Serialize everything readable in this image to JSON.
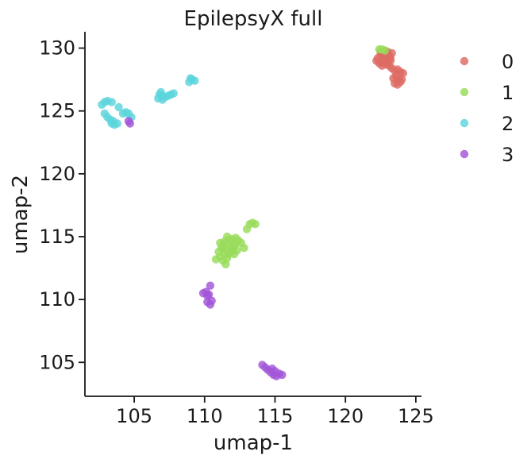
{
  "chart_data": {
    "type": "scatter",
    "title": "EpilepsyX full",
    "xlabel": "umap-1",
    "ylabel": "umap-2",
    "xlim": [
      101.5,
      125.4
    ],
    "ylim": [
      102.3,
      131.3
    ],
    "xticks": [
      105,
      110,
      115,
      120,
      125
    ],
    "yticks": [
      105,
      110,
      115,
      120,
      125,
      130
    ],
    "grid": false,
    "legend_position": "right",
    "series": [
      {
        "name": "0",
        "color": "#dd6b64",
        "points": [
          [
            122.3,
            129.2
          ],
          [
            122.5,
            129.5
          ],
          [
            122.7,
            129.3
          ],
          [
            122.9,
            129.6
          ],
          [
            123.1,
            129.4
          ],
          [
            122.4,
            128.8
          ],
          [
            122.6,
            128.9
          ],
          [
            122.8,
            129.0
          ],
          [
            123.0,
            128.9
          ],
          [
            123.2,
            129.0
          ],
          [
            122.5,
            129.7
          ],
          [
            122.8,
            129.8
          ],
          [
            123.0,
            129.7
          ],
          [
            123.3,
            129.6
          ],
          [
            122.2,
            129.0
          ],
          [
            122.6,
            128.6
          ],
          [
            122.9,
            128.7
          ],
          [
            123.1,
            128.6
          ],
          [
            123.3,
            128.4
          ],
          [
            123.5,
            128.2
          ],
          [
            123.7,
            128.3
          ],
          [
            123.9,
            128.1
          ],
          [
            124.1,
            128.0
          ],
          [
            123.6,
            127.8
          ],
          [
            123.8,
            127.6
          ],
          [
            124.0,
            127.5
          ],
          [
            123.9,
            127.3
          ],
          [
            123.7,
            127.1
          ],
          [
            123.5,
            127.2
          ],
          [
            123.4,
            127.6
          ],
          [
            122.7,
            129.4
          ],
          [
            123.2,
            129.2
          ]
        ]
      },
      {
        "name": "1",
        "color": "#99dc5a",
        "points": [
          [
            122.4,
            129.9
          ],
          [
            122.6,
            129.9
          ],
          [
            122.8,
            129.8
          ],
          [
            110.8,
            113.2
          ],
          [
            111.1,
            113.4
          ],
          [
            111.3,
            113.1
          ],
          [
            111.5,
            112.8
          ],
          [
            111.6,
            113.3
          ],
          [
            111.4,
            113.7
          ],
          [
            111.7,
            113.6
          ],
          [
            111.9,
            113.8
          ],
          [
            112.1,
            113.6
          ],
          [
            112.3,
            113.9
          ],
          [
            111.2,
            114.1
          ],
          [
            111.5,
            114.0
          ],
          [
            111.8,
            114.2
          ],
          [
            112.0,
            114.3
          ],
          [
            112.2,
            114.4
          ],
          [
            111.1,
            114.5
          ],
          [
            111.4,
            114.6
          ],
          [
            111.7,
            114.7
          ],
          [
            111.9,
            114.8
          ],
          [
            112.2,
            114.9
          ],
          [
            111.6,
            115.0
          ],
          [
            112.4,
            114.7
          ],
          [
            112.6,
            114.5
          ],
          [
            112.8,
            114.1
          ],
          [
            111.3,
            114.3
          ],
          [
            112.0,
            114.0
          ],
          [
            111.0,
            113.8
          ],
          [
            113.0,
            115.6
          ],
          [
            113.2,
            116.0
          ],
          [
            113.4,
            116.1
          ],
          [
            113.6,
            116.0
          ]
        ]
      },
      {
        "name": "2",
        "color": "#5cd4dc",
        "points": [
          [
            102.7,
            125.5
          ],
          [
            102.9,
            125.7
          ],
          [
            103.1,
            125.8
          ],
          [
            103.4,
            125.7
          ],
          [
            102.9,
            124.8
          ],
          [
            103.1,
            124.5
          ],
          [
            103.3,
            124.3
          ],
          [
            103.5,
            124.2
          ],
          [
            103.6,
            123.9
          ],
          [
            103.4,
            124.0
          ],
          [
            103.8,
            124.0
          ],
          [
            103.9,
            125.3
          ],
          [
            104.2,
            124.8
          ],
          [
            104.4,
            124.9
          ],
          [
            104.6,
            124.8
          ],
          [
            104.8,
            124.5
          ],
          [
            106.7,
            126.0
          ],
          [
            106.8,
            126.3
          ],
          [
            107.0,
            126.2
          ],
          [
            107.2,
            126.1
          ],
          [
            107.0,
            125.9
          ],
          [
            107.4,
            126.2
          ],
          [
            107.6,
            126.3
          ],
          [
            107.8,
            126.4
          ],
          [
            106.9,
            126.5
          ],
          [
            108.9,
            127.3
          ],
          [
            109.1,
            127.5
          ],
          [
            109.3,
            127.4
          ],
          [
            109.0,
            127.6
          ]
        ]
      },
      {
        "name": "3",
        "color": "#a256d8",
        "points": [
          [
            104.6,
            124.2
          ],
          [
            104.7,
            124.0
          ],
          [
            109.9,
            110.5
          ],
          [
            110.1,
            110.6
          ],
          [
            110.3,
            110.4
          ],
          [
            110.4,
            111.1
          ],
          [
            110.2,
            110.3
          ],
          [
            110.2,
            109.8
          ],
          [
            110.4,
            109.6
          ],
          [
            110.5,
            109.9
          ],
          [
            114.1,
            104.8
          ],
          [
            114.3,
            104.6
          ],
          [
            114.5,
            104.4
          ],
          [
            114.7,
            104.2
          ],
          [
            114.9,
            104.0
          ],
          [
            115.1,
            103.9
          ],
          [
            115.3,
            104.1
          ],
          [
            115.5,
            104.0
          ],
          [
            114.8,
            104.5
          ],
          [
            115.0,
            104.3
          ]
        ]
      }
    ]
  }
}
